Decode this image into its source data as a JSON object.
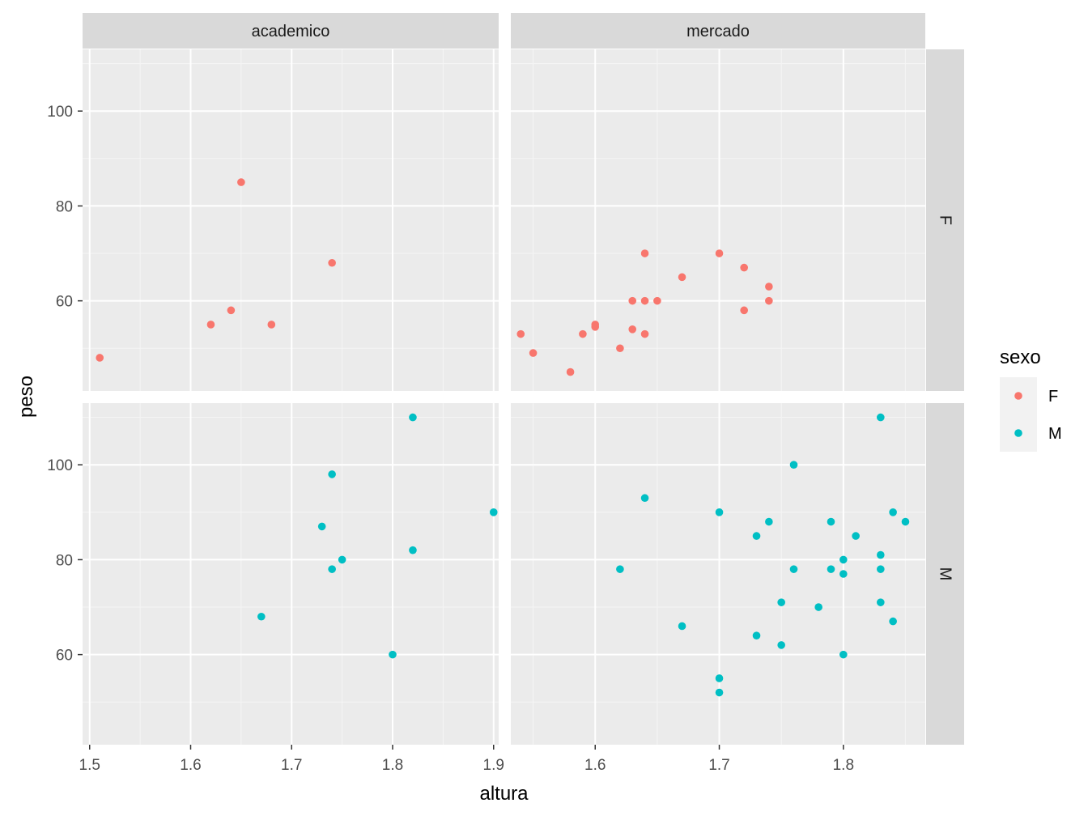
{
  "chart_data": {
    "type": "scatter",
    "xlabel": "altura",
    "ylabel": "peso",
    "facet_cols": [
      "academico",
      "mercado"
    ],
    "facet_rows": [
      "F",
      "M"
    ],
    "legend": {
      "title": "sexo",
      "placement": "right",
      "entries": [
        {
          "label": "F",
          "color": "#F8766D"
        },
        {
          "label": "M",
          "color": "#00BFC4"
        }
      ]
    },
    "grid": true,
    "y_ticks": [
      60,
      80,
      100
    ],
    "y_range": [
      41,
      113
    ],
    "columns": [
      {
        "name": "academico",
        "x_range": [
          1.493,
          1.905
        ],
        "x_ticks": [
          1.5,
          1.6,
          1.7,
          1.8,
          1.9
        ],
        "x_tick_labels": [
          "1.5",
          "1.6",
          "1.7",
          "1.8",
          "1.9"
        ]
      },
      {
        "name": "mercado",
        "x_range": [
          1.532,
          1.866
        ],
        "x_ticks": [
          1.6,
          1.7,
          1.8
        ],
        "x_tick_labels": [
          "1.6",
          "1.7",
          "1.8"
        ]
      }
    ],
    "panels": [
      {
        "col": "academico",
        "row": "F",
        "sexo": "F",
        "points": [
          [
            1.51,
            48
          ],
          [
            1.62,
            55
          ],
          [
            1.64,
            58
          ],
          [
            1.65,
            85
          ],
          [
            1.68,
            55
          ],
          [
            1.74,
            68
          ]
        ]
      },
      {
        "col": "mercado",
        "row": "F",
        "sexo": "F",
        "points": [
          [
            1.54,
            53
          ],
          [
            1.55,
            49
          ],
          [
            1.58,
            45
          ],
          [
            1.59,
            53
          ],
          [
            1.6,
            54.5
          ],
          [
            1.6,
            55
          ],
          [
            1.62,
            50
          ],
          [
            1.63,
            54
          ],
          [
            1.63,
            60
          ],
          [
            1.64,
            53
          ],
          [
            1.64,
            60
          ],
          [
            1.64,
            70
          ],
          [
            1.65,
            60
          ],
          [
            1.67,
            65
          ],
          [
            1.7,
            70
          ],
          [
            1.72,
            67
          ],
          [
            1.72,
            58
          ],
          [
            1.74,
            63
          ],
          [
            1.74,
            60
          ]
        ]
      },
      {
        "col": "academico",
        "row": "M",
        "sexo": "M",
        "points": [
          [
            1.67,
            68
          ],
          [
            1.73,
            87
          ],
          [
            1.74,
            98
          ],
          [
            1.74,
            78
          ],
          [
            1.75,
            80
          ],
          [
            1.8,
            60
          ],
          [
            1.82,
            110
          ],
          [
            1.82,
            82
          ],
          [
            1.9,
            90
          ]
        ]
      },
      {
        "col": "mercado",
        "row": "M",
        "sexo": "M",
        "points": [
          [
            1.62,
            78
          ],
          [
            1.64,
            93
          ],
          [
            1.67,
            66
          ],
          [
            1.7,
            90
          ],
          [
            1.7,
            55
          ],
          [
            1.7,
            52
          ],
          [
            1.73,
            85
          ],
          [
            1.73,
            64
          ],
          [
            1.74,
            88
          ],
          [
            1.75,
            71
          ],
          [
            1.75,
            62
          ],
          [
            1.76,
            100
          ],
          [
            1.76,
            78
          ],
          [
            1.78,
            70
          ],
          [
            1.79,
            88
          ],
          [
            1.79,
            78
          ],
          [
            1.8,
            80
          ],
          [
            1.8,
            77
          ],
          [
            1.8,
            60
          ],
          [
            1.81,
            85
          ],
          [
            1.83,
            110
          ],
          [
            1.83,
            81
          ],
          [
            1.83,
            78
          ],
          [
            1.83,
            71
          ],
          [
            1.84,
            90
          ],
          [
            1.84,
            67
          ],
          [
            1.85,
            88
          ]
        ]
      }
    ]
  }
}
